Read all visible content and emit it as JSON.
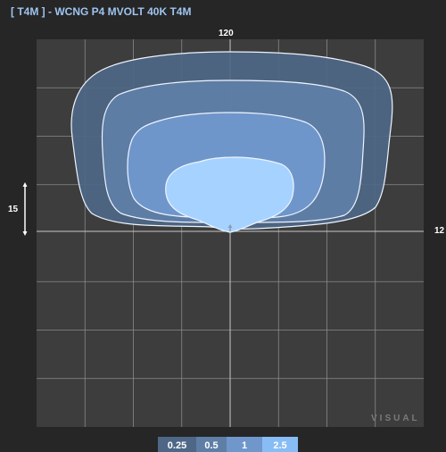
{
  "title": "[ T4M ] - WCNG P4 MVOLT 40K T4M",
  "labels": {
    "top": "120",
    "right": "12",
    "scale": "15"
  },
  "watermark": "VISUAL",
  "legend": [
    "0.25",
    "0.5",
    "1",
    "2.5"
  ],
  "colors": {
    "background": "#262626",
    "plot_background": "#3d3d3d",
    "grid": "#8a8a8a",
    "title": "#9ec4f0",
    "contour_0_25": "#4e6786",
    "contour_0_5": "#5e7ea6",
    "contour_1": "#6f97cb",
    "contour_2_5": "#88bcf5"
  }
}
